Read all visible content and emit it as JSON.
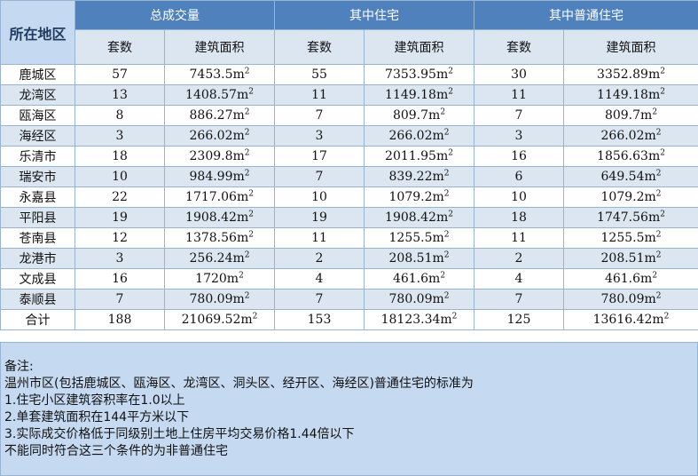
{
  "headers": {
    "region": "所在地区",
    "group_total": "总成交量",
    "group_residential": "其中住宅",
    "group_ordinary": "其中普通住宅",
    "units": "套数",
    "area": "建筑面积"
  },
  "rows": [
    {
      "region": "鹿城区",
      "t_units": "57",
      "t_area": "7453.5m²",
      "r_units": "55",
      "r_area": "7353.95m²",
      "o_units": "30",
      "o_area": "3352.89m²"
    },
    {
      "region": "龙湾区",
      "t_units": "13",
      "t_area": "1408.57m²",
      "r_units": "11",
      "r_area": "1149.18m²",
      "o_units": "11",
      "o_area": "1149.18m²"
    },
    {
      "region": "瓯海区",
      "t_units": "8",
      "t_area": "886.27m²",
      "r_units": "7",
      "r_area": "809.7m²",
      "o_units": "7",
      "o_area": "809.7m²"
    },
    {
      "region": "海经区",
      "t_units": "3",
      "t_area": "266.02m²",
      "r_units": "3",
      "r_area": "266.02m²",
      "o_units": "3",
      "o_area": "266.02m²"
    },
    {
      "region": "乐清市",
      "t_units": "18",
      "t_area": "2309.8m²",
      "r_units": "17",
      "r_area": "2011.95m²",
      "o_units": "16",
      "o_area": "1856.63m²"
    },
    {
      "region": "瑞安市",
      "t_units": "10",
      "t_area": "984.99m²",
      "r_units": "7",
      "r_area": "839.22m²",
      "o_units": "6",
      "o_area": "649.54m²"
    },
    {
      "region": "永嘉县",
      "t_units": "22",
      "t_area": "1717.06m²",
      "r_units": "10",
      "r_area": "1079.2m²",
      "o_units": "10",
      "o_area": "1079.2m²"
    },
    {
      "region": "平阳县",
      "t_units": "19",
      "t_area": "1908.42m²",
      "r_units": "19",
      "r_area": "1908.42m²",
      "o_units": "18",
      "o_area": "1747.56m²"
    },
    {
      "region": "苍南县",
      "t_units": "12",
      "t_area": "1378.56m²",
      "r_units": "11",
      "r_area": "1255.5m²",
      "o_units": "11",
      "o_area": "1255.5m²"
    },
    {
      "region": "龙港市",
      "t_units": "3",
      "t_area": "256.24m²",
      "r_units": "2",
      "r_area": "208.51m²",
      "o_units": "2",
      "o_area": "208.51m²"
    },
    {
      "region": "文成县",
      "t_units": "16",
      "t_area": "1720m²",
      "r_units": "4",
      "r_area": "461.6m²",
      "o_units": "4",
      "o_area": "461.6m²"
    },
    {
      "region": "泰顺县",
      "t_units": "7",
      "t_area": "780.09m²",
      "r_units": "7",
      "r_area": "780.09m²",
      "o_units": "7",
      "o_area": "780.09m²"
    },
    {
      "region": "合计",
      "t_units": "188",
      "t_area": "21069.52m²",
      "r_units": "153",
      "r_area": "18123.34m²",
      "o_units": "125",
      "o_area": "13616.42m²"
    }
  ],
  "notes": [
    "备注:",
    "温州市区(包括鹿城区、瓯海区、龙湾区、洞头区、经开区、海经区)普通住宅的标准为",
    "1.住宅小区建筑容积率在1.0以上",
    "2.单套建筑面积在144平方米以下",
    "3.实际成交价格低于同级别土地上住房平均交易价格1.44倍以下",
    "不能同时符合这三个条件的为非普通住宅"
  ],
  "colors": {
    "header_blue": "#4f81bd",
    "light_blue": "#dce6f1",
    "region_header": "#c5d9f1",
    "border": "#98b4d4"
  }
}
